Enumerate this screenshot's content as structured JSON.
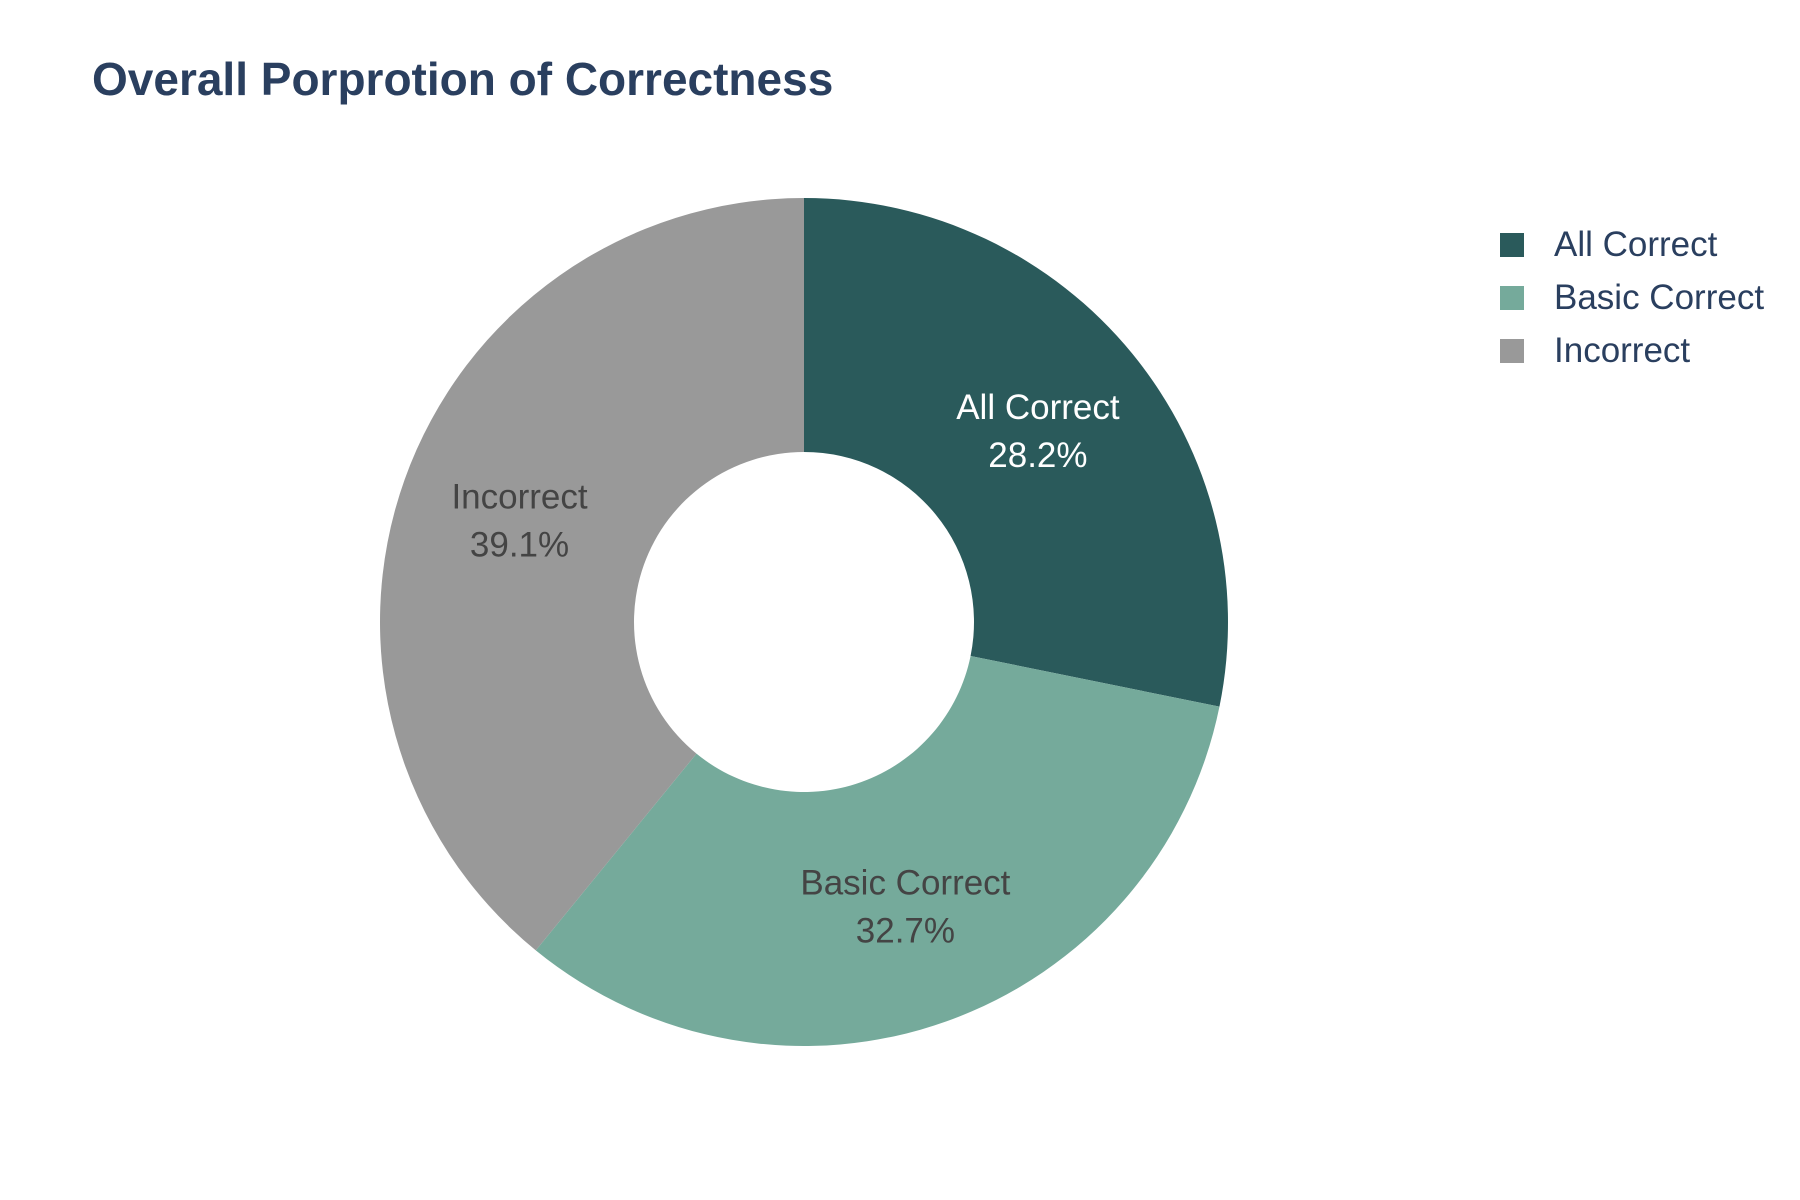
{
  "chart_data": {
    "type": "pie",
    "hole": true,
    "title": "Overall Porprotion of Correctness",
    "categories": [
      "All Correct",
      "Basic Correct",
      "Incorrect"
    ],
    "values": [
      28.2,
      32.7,
      39.1
    ],
    "value_labels": [
      "28.2%",
      "32.7%",
      "39.1%"
    ],
    "colors": [
      "#2a5a5b",
      "#75aa9b",
      "#999999"
    ],
    "label_colors": [
      "#ffffff",
      "#444444",
      "#444444"
    ],
    "legend": {
      "position": "top-right",
      "items": [
        "All Correct",
        "Basic Correct",
        "Incorrect"
      ]
    }
  }
}
